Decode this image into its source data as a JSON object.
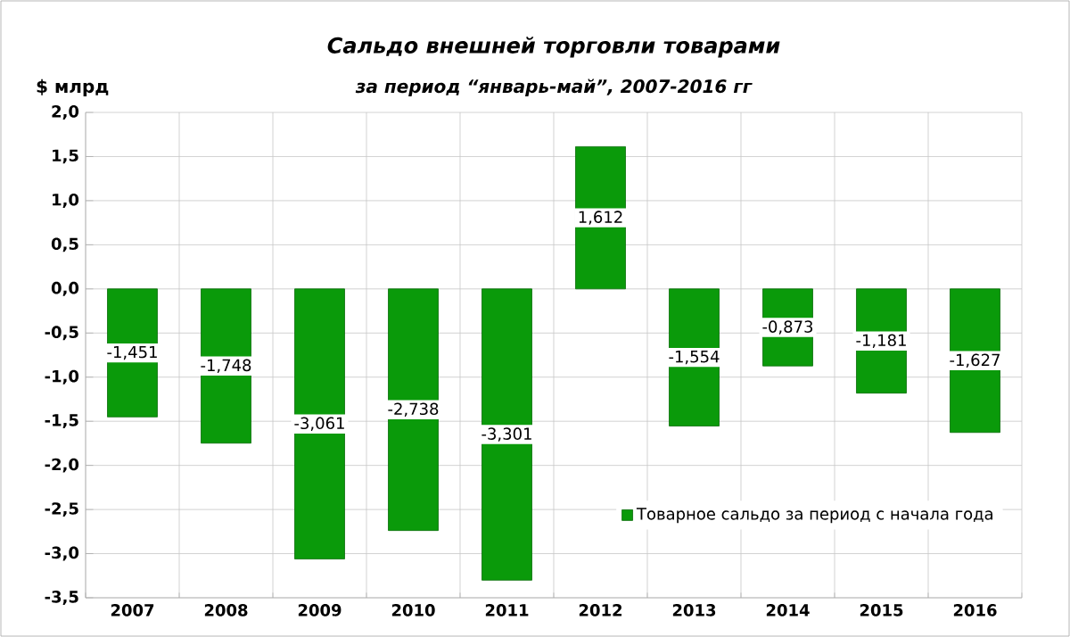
{
  "chart_data": {
    "type": "bar",
    "title": "Сальдо внешней торговли товарами",
    "subtitle": "за период “январь-май”, 2007-2016 гг",
    "ylabel": "$ млрд",
    "categories": [
      "2007",
      "2008",
      "2009",
      "2010",
      "2011",
      "2012",
      "2013",
      "2014",
      "2015",
      "2016"
    ],
    "series": [
      {
        "name": "Товарное сальдо за период с начала года",
        "color": "#0a9a0a",
        "values": [
          -1.451,
          -1.748,
          -3.061,
          -2.738,
          -3.301,
          1.612,
          -1.554,
          -0.873,
          -1.181,
          -1.627
        ],
        "value_labels": [
          "-1,451",
          "-1,748",
          "-3,061",
          "-2,738",
          "-3,301",
          "1,612",
          "-1,554",
          "-0,873",
          "-1,181",
          "-1,627"
        ]
      }
    ],
    "ylim": [
      -3.5,
      2.0
    ],
    "yticks": [
      {
        "value": -3.5,
        "label": "-3,5"
      },
      {
        "value": -3.0,
        "label": "-3,0"
      },
      {
        "value": -2.5,
        "label": "-2,5"
      },
      {
        "value": -2.0,
        "label": "-2,0"
      },
      {
        "value": -1.5,
        "label": "-1,5"
      },
      {
        "value": -1.0,
        "label": "-1,0"
      },
      {
        "value": -0.5,
        "label": "-0,5"
      },
      {
        "value": 0.0,
        "label": "0,0"
      },
      {
        "value": 0.5,
        "label": "0,5"
      },
      {
        "value": 1.0,
        "label": "1,0"
      },
      {
        "value": 1.5,
        "label": "1,5"
      },
      {
        "value": 2.0,
        "label": "2,0"
      }
    ],
    "grid": true,
    "legend": "bottom right"
  }
}
